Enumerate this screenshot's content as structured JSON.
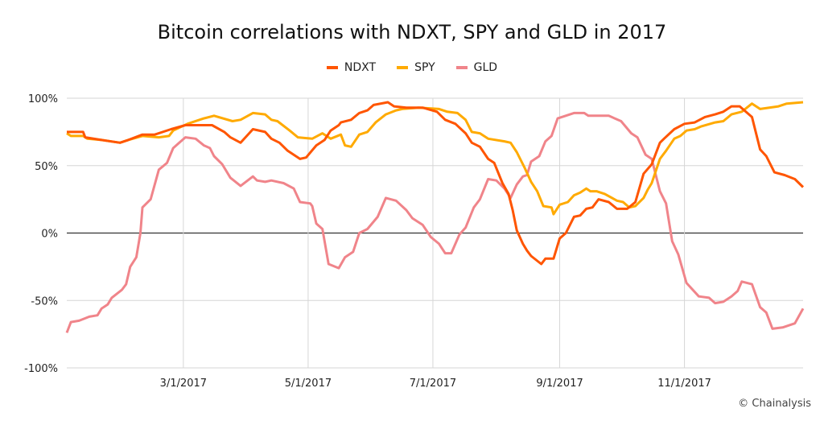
{
  "chart_data": {
    "type": "line",
    "title": "Bitcoin correlations with NDXT, SPY and GLD in 2017",
    "xlabel": "",
    "ylabel": "",
    "x_unit": "day of year 2017 (0 = Jan 1)",
    "xlim": [
      2,
      362
    ],
    "ylim": [
      -100,
      100
    ],
    "grid": true,
    "legend_position": "top-center",
    "y_ticks": [
      {
        "value": 100,
        "label": "100%"
      },
      {
        "value": 50,
        "label": "50%"
      },
      {
        "value": 0,
        "label": "0%"
      },
      {
        "value": -50,
        "label": "-50%"
      },
      {
        "value": -100,
        "label": "-100%"
      }
    ],
    "x_ticks": [
      {
        "day": 59,
        "label": "3/1/2017"
      },
      {
        "day": 120,
        "label": "5/1/2017"
      },
      {
        "day": 181,
        "label": "7/1/2017"
      },
      {
        "day": 243,
        "label": "9/1/2017"
      },
      {
        "day": 304,
        "label": "11/1/2017"
      }
    ],
    "series": [
      {
        "name": "NDXT",
        "color": "#ff5500",
        "points": [
          [
            2,
            75
          ],
          [
            10,
            75
          ],
          [
            11,
            71
          ],
          [
            19,
            69
          ],
          [
            28,
            67
          ],
          [
            32,
            69
          ],
          [
            39,
            73
          ],
          [
            45,
            73
          ],
          [
            53,
            77
          ],
          [
            60,
            80
          ],
          [
            73,
            80
          ],
          [
            79,
            75
          ],
          [
            82,
            71
          ],
          [
            87,
            67
          ],
          [
            93,
            77
          ],
          [
            99,
            75
          ],
          [
            102,
            70
          ],
          [
            106,
            67
          ],
          [
            110,
            61
          ],
          [
            116,
            55
          ],
          [
            119,
            56
          ],
          [
            124,
            65
          ],
          [
            128,
            69
          ],
          [
            131,
            76
          ],
          [
            135,
            80
          ],
          [
            136,
            82
          ],
          [
            141,
            84
          ],
          [
            145,
            89
          ],
          [
            149,
            91
          ],
          [
            152,
            95
          ],
          [
            159,
            97
          ],
          [
            162,
            94
          ],
          [
            168,
            93
          ],
          [
            176,
            93
          ],
          [
            183,
            90
          ],
          [
            187,
            84
          ],
          [
            192,
            81
          ],
          [
            197,
            74
          ],
          [
            200,
            67
          ],
          [
            204,
            64
          ],
          [
            208,
            55
          ],
          [
            211,
            52
          ],
          [
            215,
            37
          ],
          [
            218,
            29
          ],
          [
            220,
            17
          ],
          [
            222,
            2
          ],
          [
            225,
            -8
          ],
          [
            227,
            -13
          ],
          [
            229,
            -17
          ],
          [
            234,
            -23
          ],
          [
            236,
            -19
          ],
          [
            240,
            -19
          ],
          [
            243,
            -4
          ],
          [
            246,
            0
          ],
          [
            250,
            12
          ],
          [
            253,
            13
          ],
          [
            256,
            18
          ],
          [
            259,
            19
          ],
          [
            262,
            25
          ],
          [
            267,
            23
          ],
          [
            271,
            18
          ],
          [
            276,
            18
          ],
          [
            280,
            23
          ],
          [
            284,
            44
          ],
          [
            288,
            51
          ],
          [
            292,
            67
          ],
          [
            294,
            70
          ],
          [
            299,
            77
          ],
          [
            304,
            81
          ],
          [
            309,
            82
          ],
          [
            314,
            86
          ],
          [
            319,
            88
          ],
          [
            323,
            90
          ],
          [
            327,
            94
          ],
          [
            331,
            94
          ],
          [
            337,
            86
          ],
          [
            341,
            62
          ],
          [
            344,
            57
          ],
          [
            348,
            45
          ],
          [
            353,
            43
          ],
          [
            358,
            40
          ],
          [
            362,
            34
          ]
        ]
      },
      {
        "name": "SPY",
        "color": "#ffaa00",
        "points": [
          [
            2,
            74
          ],
          [
            4,
            72
          ],
          [
            10,
            72
          ],
          [
            12,
            70
          ],
          [
            19,
            69
          ],
          [
            28,
            67
          ],
          [
            32,
            69
          ],
          [
            39,
            72
          ],
          [
            47,
            71
          ],
          [
            52,
            72
          ],
          [
            54,
            76
          ],
          [
            61,
            81
          ],
          [
            69,
            85
          ],
          [
            74,
            87
          ],
          [
            83,
            83
          ],
          [
            87,
            84
          ],
          [
            93,
            89
          ],
          [
            99,
            88
          ],
          [
            102,
            84
          ],
          [
            105,
            83
          ],
          [
            111,
            76
          ],
          [
            115,
            71
          ],
          [
            122,
            70
          ],
          [
            127,
            74
          ],
          [
            131,
            70
          ],
          [
            136,
            73
          ],
          [
            138,
            65
          ],
          [
            141,
            64
          ],
          [
            145,
            73
          ],
          [
            149,
            75
          ],
          [
            153,
            82
          ],
          [
            158,
            88
          ],
          [
            163,
            91
          ],
          [
            166,
            92
          ],
          [
            174,
            93
          ],
          [
            184,
            92
          ],
          [
            188,
            90
          ],
          [
            193,
            89
          ],
          [
            197,
            84
          ],
          [
            200,
            75
          ],
          [
            204,
            74
          ],
          [
            208,
            70
          ],
          [
            216,
            68
          ],
          [
            219,
            67
          ],
          [
            222,
            60
          ],
          [
            226,
            48
          ],
          [
            229,
            38
          ],
          [
            232,
            31
          ],
          [
            235,
            20
          ],
          [
            239,
            19
          ],
          [
            240,
            14
          ],
          [
            243,
            21
          ],
          [
            247,
            23
          ],
          [
            250,
            28
          ],
          [
            253,
            30
          ],
          [
            256,
            33
          ],
          [
            258,
            31
          ],
          [
            261,
            31
          ],
          [
            265,
            29
          ],
          [
            271,
            24
          ],
          [
            274,
            23
          ],
          [
            277,
            19
          ],
          [
            280,
            20
          ],
          [
            284,
            26
          ],
          [
            286,
            32
          ],
          [
            288,
            37
          ],
          [
            292,
            55
          ],
          [
            295,
            61
          ],
          [
            299,
            70
          ],
          [
            302,
            72
          ],
          [
            305,
            76
          ],
          [
            309,
            77
          ],
          [
            312,
            79
          ],
          [
            319,
            82
          ],
          [
            323,
            83
          ],
          [
            327,
            88
          ],
          [
            332,
            90
          ],
          [
            337,
            96
          ],
          [
            341,
            92
          ],
          [
            350,
            94
          ],
          [
            354,
            96
          ],
          [
            362,
            97
          ]
        ]
      },
      {
        "name": "GLD",
        "color": "#f0848a",
        "points": [
          [
            2,
            -74
          ],
          [
            4,
            -66
          ],
          [
            8,
            -65
          ],
          [
            13,
            -62
          ],
          [
            17,
            -61
          ],
          [
            19,
            -56
          ],
          [
            22,
            -53
          ],
          [
            24,
            -48
          ],
          [
            29,
            -42
          ],
          [
            31,
            -38
          ],
          [
            33,
            -25
          ],
          [
            36,
            -18
          ],
          [
            38,
            0
          ],
          [
            39,
            19
          ],
          [
            43,
            25
          ],
          [
            47,
            47
          ],
          [
            51,
            52
          ],
          [
            54,
            63
          ],
          [
            57,
            67
          ],
          [
            60,
            71
          ],
          [
            65,
            70
          ],
          [
            69,
            65
          ],
          [
            72,
            63
          ],
          [
            74,
            57
          ],
          [
            78,
            51
          ],
          [
            82,
            41
          ],
          [
            87,
            35
          ],
          [
            93,
            42
          ],
          [
            95,
            39
          ],
          [
            99,
            38
          ],
          [
            102,
            39
          ],
          [
            108,
            37
          ],
          [
            113,
            33
          ],
          [
            116,
            23
          ],
          [
            121,
            22
          ],
          [
            122,
            20
          ],
          [
            124,
            7
          ],
          [
            127,
            3
          ],
          [
            130,
            -23
          ],
          [
            135,
            -26
          ],
          [
            138,
            -18
          ],
          [
            142,
            -14
          ],
          [
            145,
            0
          ],
          [
            149,
            3
          ],
          [
            154,
            12
          ],
          [
            158,
            26
          ],
          [
            163,
            24
          ],
          [
            168,
            17
          ],
          [
            171,
            11
          ],
          [
            176,
            6
          ],
          [
            180,
            -3
          ],
          [
            184,
            -8
          ],
          [
            187,
            -15
          ],
          [
            190,
            -15
          ],
          [
            194,
            -1
          ],
          [
            197,
            4
          ],
          [
            201,
            19
          ],
          [
            204,
            25
          ],
          [
            208,
            40
          ],
          [
            212,
            39
          ],
          [
            216,
            33
          ],
          [
            219,
            26
          ],
          [
            222,
            36
          ],
          [
            225,
            42
          ],
          [
            227,
            43
          ],
          [
            229,
            53
          ],
          [
            233,
            57
          ],
          [
            236,
            68
          ],
          [
            239,
            72
          ],
          [
            242,
            85
          ],
          [
            244,
            86
          ],
          [
            250,
            89
          ],
          [
            255,
            89
          ],
          [
            257,
            87
          ],
          [
            267,
            87
          ],
          [
            273,
            83
          ],
          [
            278,
            74
          ],
          [
            281,
            71
          ],
          [
            285,
            58
          ],
          [
            288,
            55
          ],
          [
            292,
            31
          ],
          [
            295,
            22
          ],
          [
            298,
            -6
          ],
          [
            301,
            -16
          ],
          [
            305,
            -37
          ],
          [
            311,
            -47
          ],
          [
            316,
            -48
          ],
          [
            319,
            -52
          ],
          [
            323,
            -51
          ],
          [
            327,
            -47
          ],
          [
            330,
            -43
          ],
          [
            332,
            -36
          ],
          [
            337,
            -38
          ],
          [
            341,
            -55
          ],
          [
            344,
            -59
          ],
          [
            347,
            -71
          ],
          [
            352,
            -70
          ],
          [
            358,
            -67
          ],
          [
            362,
            -56
          ]
        ]
      }
    ]
  },
  "copyright": "© Chainalysis"
}
